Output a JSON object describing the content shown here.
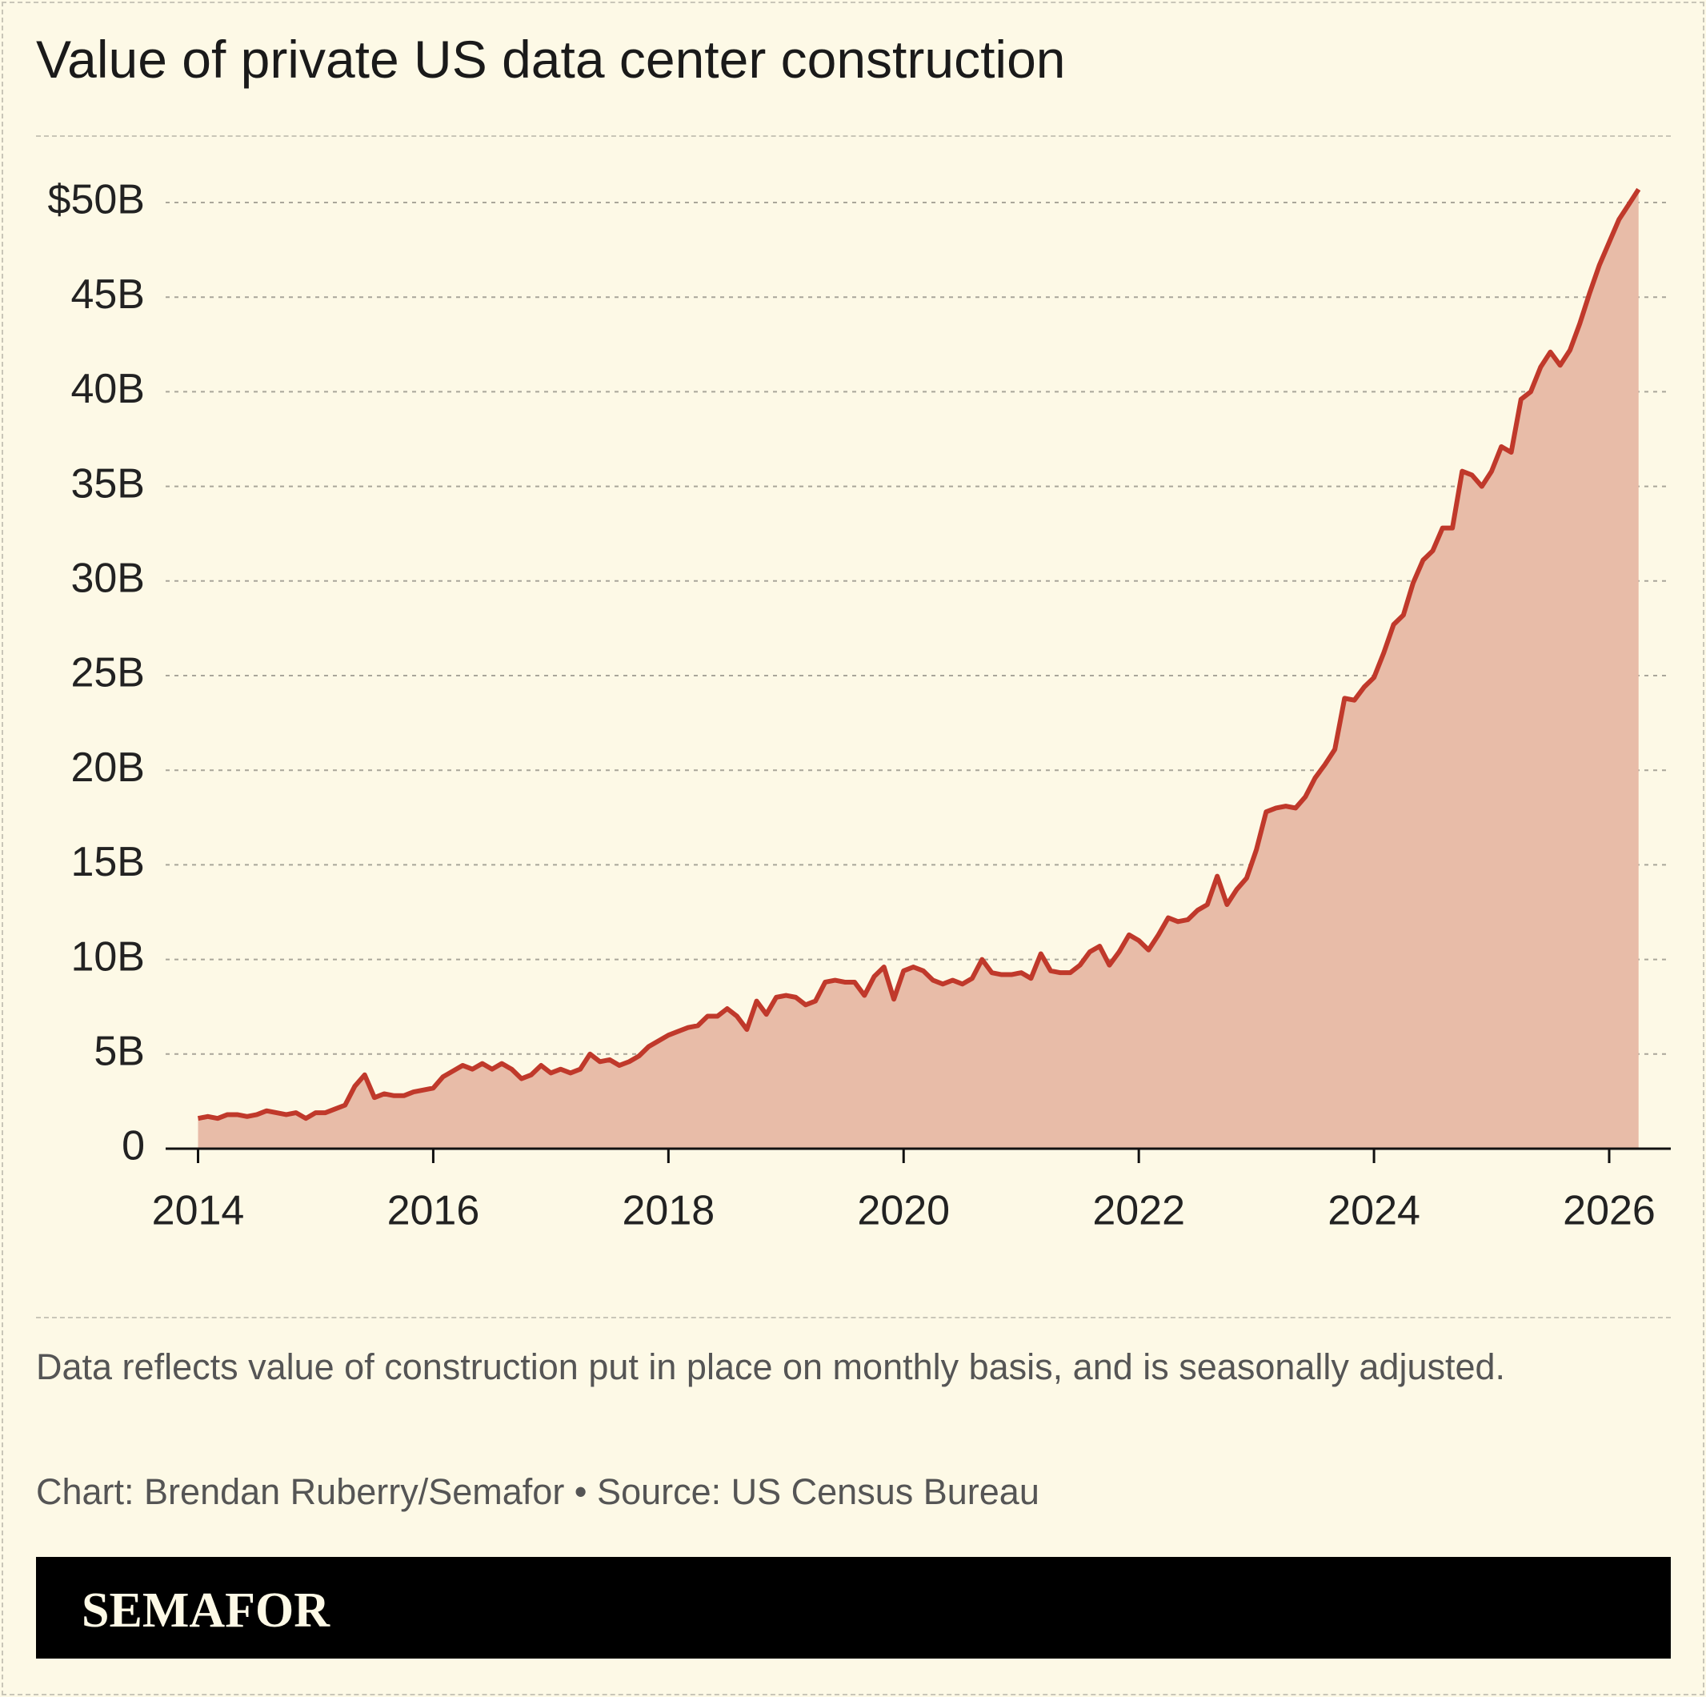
{
  "chart_data": {
    "type": "area",
    "title": "Value of private US data center construction",
    "x": [
      2014,
      2014.083,
      2014.167,
      2014.25,
      2014.333,
      2014.417,
      2014.5,
      2014.583,
      2014.667,
      2014.75,
      2014.833,
      2014.917,
      2015,
      2015.083,
      2015.167,
      2015.25,
      2015.333,
      2015.417,
      2015.5,
      2015.583,
      2015.667,
      2015.75,
      2015.833,
      2015.917,
      2016,
      2016.083,
      2016.167,
      2016.25,
      2016.333,
      2016.417,
      2016.5,
      2016.583,
      2016.667,
      2016.75,
      2016.833,
      2016.917,
      2017,
      2017.083,
      2017.167,
      2017.25,
      2017.333,
      2017.417,
      2017.5,
      2017.583,
      2017.667,
      2017.75,
      2017.833,
      2017.917,
      2018,
      2018.083,
      2018.167,
      2018.25,
      2018.333,
      2018.417,
      2018.5,
      2018.583,
      2018.667,
      2018.75,
      2018.833,
      2018.917,
      2019,
      2019.083,
      2019.167,
      2019.25,
      2019.333,
      2019.417,
      2019.5,
      2019.583,
      2019.667,
      2019.75,
      2019.833,
      2019.917,
      2020,
      2020.083,
      2020.167,
      2020.25,
      2020.333,
      2020.417,
      2020.5,
      2020.583,
      2020.667,
      2020.75,
      2020.833,
      2020.917,
      2021,
      2021.083,
      2021.167,
      2021.25,
      2021.333,
      2021.417,
      2021.5,
      2021.583,
      2021.667,
      2021.75,
      2021.833,
      2021.917,
      2022,
      2022.083,
      2022.167,
      2022.25,
      2022.333,
      2022.417,
      2022.5,
      2022.583,
      2022.667,
      2022.75,
      2022.833,
      2022.917,
      2023,
      2023.083,
      2023.167,
      2023.25,
      2023.333,
      2023.417,
      2023.5,
      2023.583,
      2023.667,
      2023.75,
      2023.833,
      2023.917,
      2024,
      2024.083,
      2024.167,
      2024.25,
      2024.333,
      2024.417,
      2024.5,
      2024.583,
      2024.667,
      2024.75,
      2024.833,
      2024.917,
      2025,
      2025.083,
      2025.167,
      2025.25,
      2025.333,
      2025.417,
      2025.5,
      2025.583,
      2025.667,
      2025.75,
      2025.833,
      2025.917,
      2026,
      2026.083,
      2026.167,
      2026.25
    ],
    "values": [
      1.6,
      1.7,
      1.6,
      1.8,
      1.8,
      1.7,
      1.8,
      2.0,
      1.9,
      1.8,
      1.9,
      1.6,
      1.9,
      1.9,
      2.1,
      2.3,
      3.3,
      3.9,
      2.7,
      2.9,
      2.8,
      2.8,
      3.0,
      3.1,
      3.2,
      3.8,
      4.1,
      4.4,
      4.2,
      4.5,
      4.2,
      4.5,
      4.2,
      3.7,
      3.9,
      4.4,
      4.0,
      4.2,
      4.0,
      4.2,
      5.0,
      4.6,
      4.7,
      4.4,
      4.6,
      4.9,
      5.4,
      5.7,
      6.0,
      6.2,
      6.4,
      6.5,
      7.0,
      7.0,
      7.4,
      7.0,
      6.3,
      7.8,
      7.1,
      8.0,
      8.1,
      8.0,
      7.6,
      7.8,
      8.8,
      8.9,
      8.8,
      8.8,
      8.1,
      9.1,
      9.6,
      7.9,
      9.4,
      9.6,
      9.4,
      8.9,
      8.7,
      8.9,
      8.7,
      9.0,
      10.0,
      9.3,
      9.2,
      9.2,
      9.3,
      9.0,
      10.3,
      9.4,
      9.3,
      9.3,
      9.7,
      10.4,
      10.7,
      9.7,
      10.4,
      11.3,
      11.0,
      10.5,
      11.3,
      12.2,
      12.0,
      12.1,
      12.6,
      12.9,
      14.4,
      12.9,
      13.7,
      14.3,
      15.8,
      17.8,
      18.0,
      18.1,
      18.0,
      18.6,
      19.6,
      20.3,
      21.1,
      23.8,
      23.7,
      24.4,
      24.9,
      26.2,
      27.7,
      28.2,
      29.9,
      31.1,
      31.6,
      32.8,
      32.8,
      35.8,
      35.6,
      35.0,
      35.8,
      37.1,
      36.8,
      39.6,
      40.0,
      41.3,
      42.1,
      41.4,
      42.2,
      43.6,
      45.2,
      46.7,
      47.9,
      49.1,
      49.9,
      50.7
    ],
    "color": "#c0392b",
    "fill_color": "#e8bca8",
    "xlim": [
      2014,
      2026
    ],
    "xticks": [
      2014,
      2016,
      2018,
      2020,
      2022,
      2024,
      2026
    ],
    "ylim": [
      0,
      50
    ],
    "yticks": [
      0,
      {
        "value": 5,
        "label": "5B"
      },
      {
        "value": 10,
        "label": "10B"
      },
      {
        "value": 15,
        "label": "15B"
      },
      {
        "value": 20,
        "label": "20B"
      },
      {
        "value": 25,
        "label": "25B"
      },
      {
        "value": 30,
        "label": "30B"
      },
      {
        "value": 35,
        "label": "35B"
      },
      {
        "value": 40,
        "label": "40B"
      },
      {
        "value": 45,
        "label": "45B"
      },
      {
        "value": 50,
        "label": "$50B"
      }
    ],
    "grid": true
  },
  "footer": {
    "note": "Data reflects value of construction put in place on monthly basis, and is seasonally adjusted.",
    "credit": "Chart: Brendan Ruberry/Semafor • Source: US Census Bureau",
    "brand": "SEMAFOR"
  }
}
